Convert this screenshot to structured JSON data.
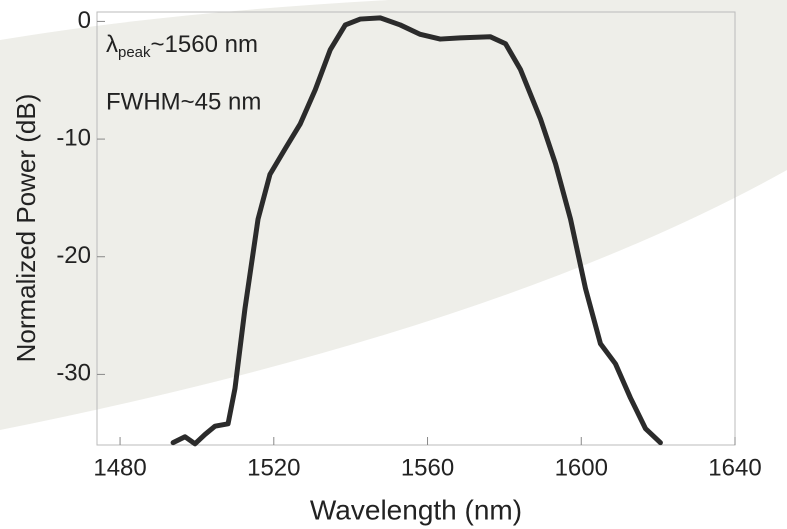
{
  "chart_data": {
    "type": "line",
    "xlabel": "Wavelength (nm)",
    "ylabel": "Normalized Power (dB)",
    "annotations": [
      {
        "parts": [
          "λ",
          "peak",
          "~1560 nm"
        ]
      },
      {
        "parts": [
          "FWHM~45 nm"
        ]
      }
    ],
    "x": [
      1493.8,
      1496.9,
      1499.5,
      1502.1,
      1504.7,
      1508.1,
      1509.9,
      1512.5,
      1515.9,
      1519,
      1523,
      1526.9,
      1530.8,
      1534.7,
      1538.6,
      1542.5,
      1547.7,
      1552.9,
      1558.1,
      1563.3,
      1568.5,
      1576.3,
      1580.3,
      1584.2,
      1589.4,
      1593.3,
      1597.2,
      1601.1,
      1605,
      1608.9,
      1612.8,
      1616.7,
      1620.6
    ],
    "values": [
      -35.8,
      -35.3,
      -35.9,
      -35.1,
      -34.4,
      -34.2,
      -31.2,
      -24.4,
      -16.8,
      -13,
      -10.8,
      -8.7,
      -5.8,
      -2.4,
      -0.3,
      0.2,
      0.3,
      -0.3,
      -1.1,
      -1.5,
      -1.4,
      -1.3,
      -1.9,
      -4.1,
      -8.3,
      -12.1,
      -16.8,
      -22.7,
      -27.4,
      -29.1,
      -32,
      -34.6,
      -35.8
    ],
    "color": "#2b2b2b",
    "xlim": [
      1474,
      1640
    ],
    "ylim": [
      -36,
      0.8
    ],
    "xticks": [
      1480,
      1520,
      1560,
      1600,
      1640
    ],
    "yticks": [
      0,
      -10,
      -20,
      -30
    ]
  }
}
